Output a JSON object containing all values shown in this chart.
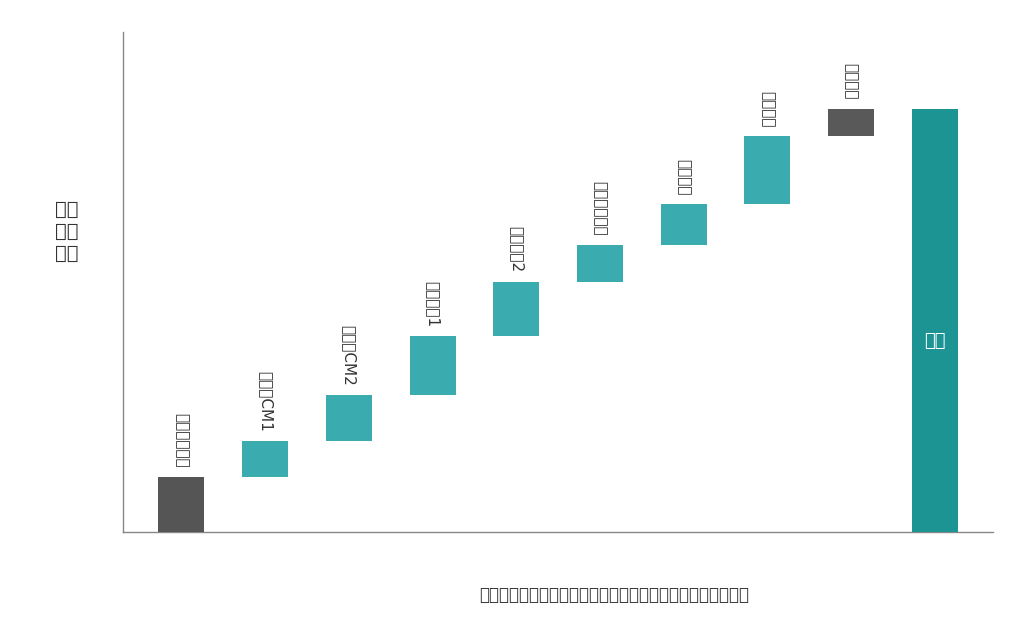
{
  "title": "売上に対する広告効果や外部要因の影響可視化のイメージ図",
  "ylabel": "売上\n構成\n割合",
  "background_color": "#ffffff",
  "categories": [
    "ベースライン",
    "テレビCM1",
    "テレビCM2",
    "動画広告1",
    "動画広告2",
    "リスティング",
    "交通広告",
    "店頭要因",
    "競合要因",
    "売上"
  ],
  "bar_bottoms": [
    0,
    12,
    20,
    30,
    43,
    55,
    63,
    72,
    87,
    0
  ],
  "bar_heights": [
    12,
    8,
    10,
    13,
    12,
    8,
    9,
    15,
    6,
    93
  ],
  "bar_colors": [
    "#555555",
    "#3aacb0",
    "#3aacb0",
    "#3aacb0",
    "#3aacb0",
    "#3aacb0",
    "#3aacb0",
    "#3aacb0",
    "#595959",
    "#1d9494"
  ],
  "label_color": "#333333",
  "title_fontsize": 12,
  "ylabel_fontsize": 14,
  "bar_label_fontsize": 11,
  "figsize": [
    10.24,
    6.33
  ]
}
